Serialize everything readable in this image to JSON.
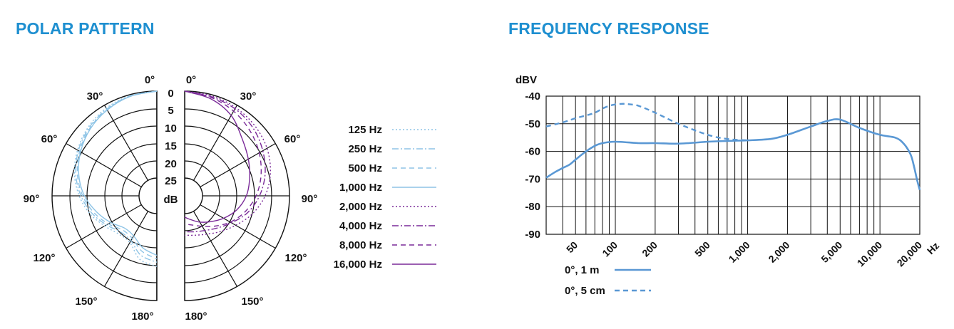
{
  "colors": {
    "accent": "#1e8fd0",
    "light_blue": "#8ec4e6",
    "purple": "#7a2a98",
    "response_blue": "#5a98d4",
    "grid": "#111111"
  },
  "chart_data": [
    {
      "type": "polar",
      "title": "POLAR PATTERN",
      "unit": "dB",
      "ring_labels": [
        "0",
        "5",
        "10",
        "15",
        "20",
        "25"
      ],
      "angle_labels_left": [
        "0°",
        "30°",
        "60°",
        "90°",
        "120°",
        "150°",
        "180°"
      ],
      "angle_labels_right": [
        "0°",
        "30°",
        "60°",
        "90°",
        "120°",
        "150°",
        "180°"
      ],
      "angles": [
        0,
        15,
        30,
        45,
        60,
        75,
        90,
        105,
        120,
        135,
        150,
        165,
        180
      ],
      "series": [
        {
          "name": "125 Hz",
          "side": "left",
          "color": "light_blue",
          "dash": "dotted",
          "values": [
            0,
            0.3,
            1.0,
            2.2,
            3.8,
            5.6,
            7.8,
            10.2,
            12.8,
            14.6,
            14.6,
            11.2,
            9.8
          ]
        },
        {
          "name": "250 Hz",
          "side": "left",
          "color": "light_blue",
          "dash": "dashdot",
          "values": [
            0,
            0.4,
            1.3,
            2.5,
            4.1,
            6.0,
            8.3,
            10.8,
            13.4,
            15.4,
            15.2,
            12.4,
            11.0
          ]
        },
        {
          "name": "500 Hz",
          "side": "left",
          "color": "light_blue",
          "dash": "dashed",
          "values": [
            0,
            0.5,
            1.5,
            2.8,
            4.5,
            6.5,
            8.8,
            11.4,
            14.0,
            16.2,
            16.0,
            13.6,
            12.0
          ]
        },
        {
          "name": "1,000 Hz",
          "side": "left",
          "color": "light_blue",
          "dash": "solid",
          "values": [
            0,
            0.5,
            1.6,
            3.0,
            4.8,
            6.9,
            9.3,
            12.2,
            14.8,
            17.0,
            16.8,
            14.6,
            13.0
          ]
        },
        {
          "name": "2,000 Hz",
          "side": "right",
          "color": "purple",
          "dash": "dotted",
          "values": [
            0,
            0.3,
            0.8,
            1.6,
            2.8,
            4.6,
            7.0,
            10.0,
            13.2,
            15.6,
            17.4,
            18.4,
            18.8
          ]
        },
        {
          "name": "4,000 Hz",
          "side": "right",
          "color": "purple",
          "dash": "dashdot",
          "values": [
            0,
            0.6,
            1.2,
            2.4,
            4.2,
            6.2,
            8.6,
            11.4,
            14.6,
            17.0,
            18.6,
            19.4,
            19.8
          ]
        },
        {
          "name": "8,000 Hz",
          "side": "right",
          "color": "purple",
          "dash": "dashed",
          "values": [
            0,
            0.8,
            2.0,
            3.6,
            5.4,
            7.4,
            9.6,
            12.2,
            15.0,
            17.8,
            20.0,
            21.4,
            22.0
          ]
        },
        {
          "name": "16,000 Hz",
          "side": "right",
          "color": "purple",
          "dash": "solid",
          "values": [
            0,
            1.2,
            3.4,
            6.8,
            9.0,
            10.8,
            12.4,
            14.6,
            17.2,
            19.6,
            21.4,
            23.0,
            24.0
          ]
        }
      ]
    },
    {
      "type": "line",
      "title": "FREQUENCY RESPONSE",
      "ylabel": "dBV",
      "xlabel": "Hz",
      "x_scale": "log",
      "xlim": [
        30,
        20000
      ],
      "ylim": [
        -90,
        -40
      ],
      "yticks": [
        -40,
        -50,
        -60,
        -70,
        -80,
        -90
      ],
      "xticks": [
        {
          "value": 50,
          "label": "50"
        },
        {
          "value": 100,
          "label": "100"
        },
        {
          "value": 200,
          "label": "200"
        },
        {
          "value": 500,
          "label": "500"
        },
        {
          "value": 1000,
          "label": "1,000"
        },
        {
          "value": 2000,
          "label": "2,000"
        },
        {
          "value": 5000,
          "label": "5,000"
        },
        {
          "value": 10000,
          "label": "10,000"
        },
        {
          "value": 20000,
          "label": "20,000"
        }
      ],
      "grid": true,
      "series": [
        {
          "name": "0°, 1 m",
          "color": "response_blue",
          "dash": "solid",
          "x": [
            30,
            35,
            40,
            45,
            50,
            60,
            70,
            80,
            100,
            150,
            200,
            300,
            500,
            700,
            1000,
            1500,
            2000,
            3000,
            4000,
            5000,
            7000,
            10000,
            13000,
            15000,
            17000,
            18000,
            19000,
            20000
          ],
          "y": [
            -69.5,
            -67.5,
            -66,
            -64.8,
            -63,
            -60,
            -58,
            -57,
            -56.5,
            -57,
            -57,
            -57.2,
            -56.5,
            -56.2,
            -56,
            -55.5,
            -54,
            -51,
            -49,
            -48.5,
            -51.5,
            -54,
            -55,
            -57,
            -61,
            -65,
            -70,
            -74
          ]
        },
        {
          "name": "0°, 5 cm",
          "color": "response_blue",
          "dash": "dashed",
          "x": [
            30,
            40,
            50,
            60,
            70,
            80,
            90,
            100,
            110,
            120,
            130,
            150,
            200,
            300,
            500,
            700,
            1000
          ],
          "y": [
            -51,
            -49.5,
            -48,
            -47,
            -46,
            -44.5,
            -43.5,
            -43,
            -42.8,
            -42.8,
            -43,
            -43.5,
            -46,
            -50,
            -54,
            -55.5,
            -56
          ]
        }
      ]
    }
  ]
}
